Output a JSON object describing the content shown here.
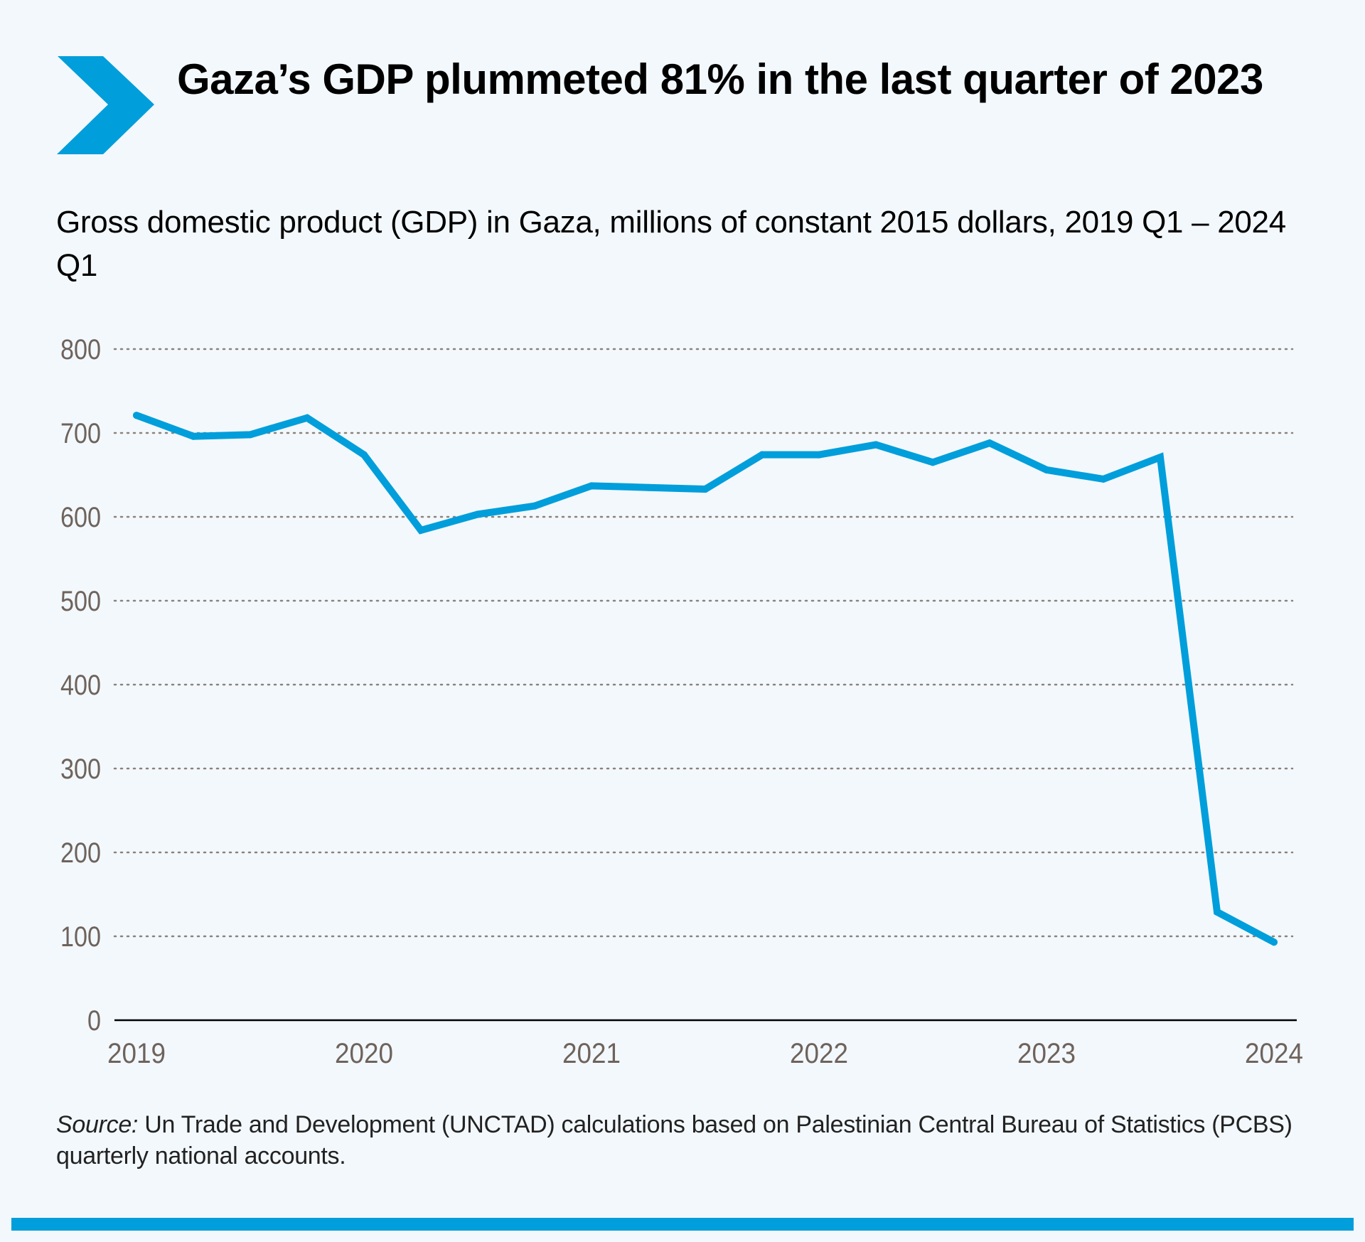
{
  "header": {
    "title": "Gaza’s GDP plummeted 81% in the last quarter of 2023",
    "subtitle": "Gross domestic product (GDP) in Gaza, millions of constant 2015 dollars, 2019 Q1 – 2024 Q1",
    "icon": "chevron-right-icon"
  },
  "colors": {
    "accent": "#009edb",
    "background": "#f3f8fc",
    "gridline": "#8c8278",
    "axis_label": "#6e635c"
  },
  "chart_data": {
    "type": "line",
    "title": "Gaza’s GDP plummeted 81% in the last quarter of 2023",
    "subtitle": "Gross domestic product (GDP) in Gaza, millions of constant 2015 dollars, 2019 Q1 – 2024 Q1",
    "xlabel": "",
    "ylabel": "",
    "x": [
      "2019 Q1",
      "2019 Q2",
      "2019 Q3",
      "2019 Q4",
      "2020 Q1",
      "2020 Q2",
      "2020 Q3",
      "2020 Q4",
      "2021 Q1",
      "2021 Q2",
      "2021 Q3",
      "2021 Q4",
      "2022 Q1",
      "2022 Q2",
      "2022 Q3",
      "2022 Q4",
      "2023 Q1",
      "2023 Q2",
      "2023 Q3",
      "2023 Q4",
      "2024 Q1"
    ],
    "series": [
      {
        "name": "GDP in Gaza",
        "color": "#009edb",
        "values": [
          721,
          696,
          698,
          718,
          674,
          584,
          603,
          613,
          637,
          635,
          633,
          674,
          674,
          686,
          665,
          688,
          656,
          645,
          671,
          129,
          93
        ]
      }
    ],
    "x_tick_labels": [
      "2019",
      "2020",
      "2021",
      "2022",
      "2023",
      "2024"
    ],
    "x_tick_positions": [
      0,
      4,
      8,
      12,
      16,
      20
    ],
    "y_ticks": [
      0,
      100,
      200,
      300,
      400,
      500,
      600,
      700,
      800
    ],
    "y_tick_labels": [
      "0",
      "100",
      "200",
      "300",
      "400",
      "500",
      "600",
      "700",
      "800"
    ],
    "ylim": [
      0,
      800
    ],
    "grid": "horizontal dotted",
    "legend": "none"
  },
  "footer": {
    "source_label": "Source:",
    "source_text": " Un Trade and Development (UNCTAD) calculations based on Palestinian Central Bureau of Statistics (PCBS) quarterly national accounts."
  }
}
